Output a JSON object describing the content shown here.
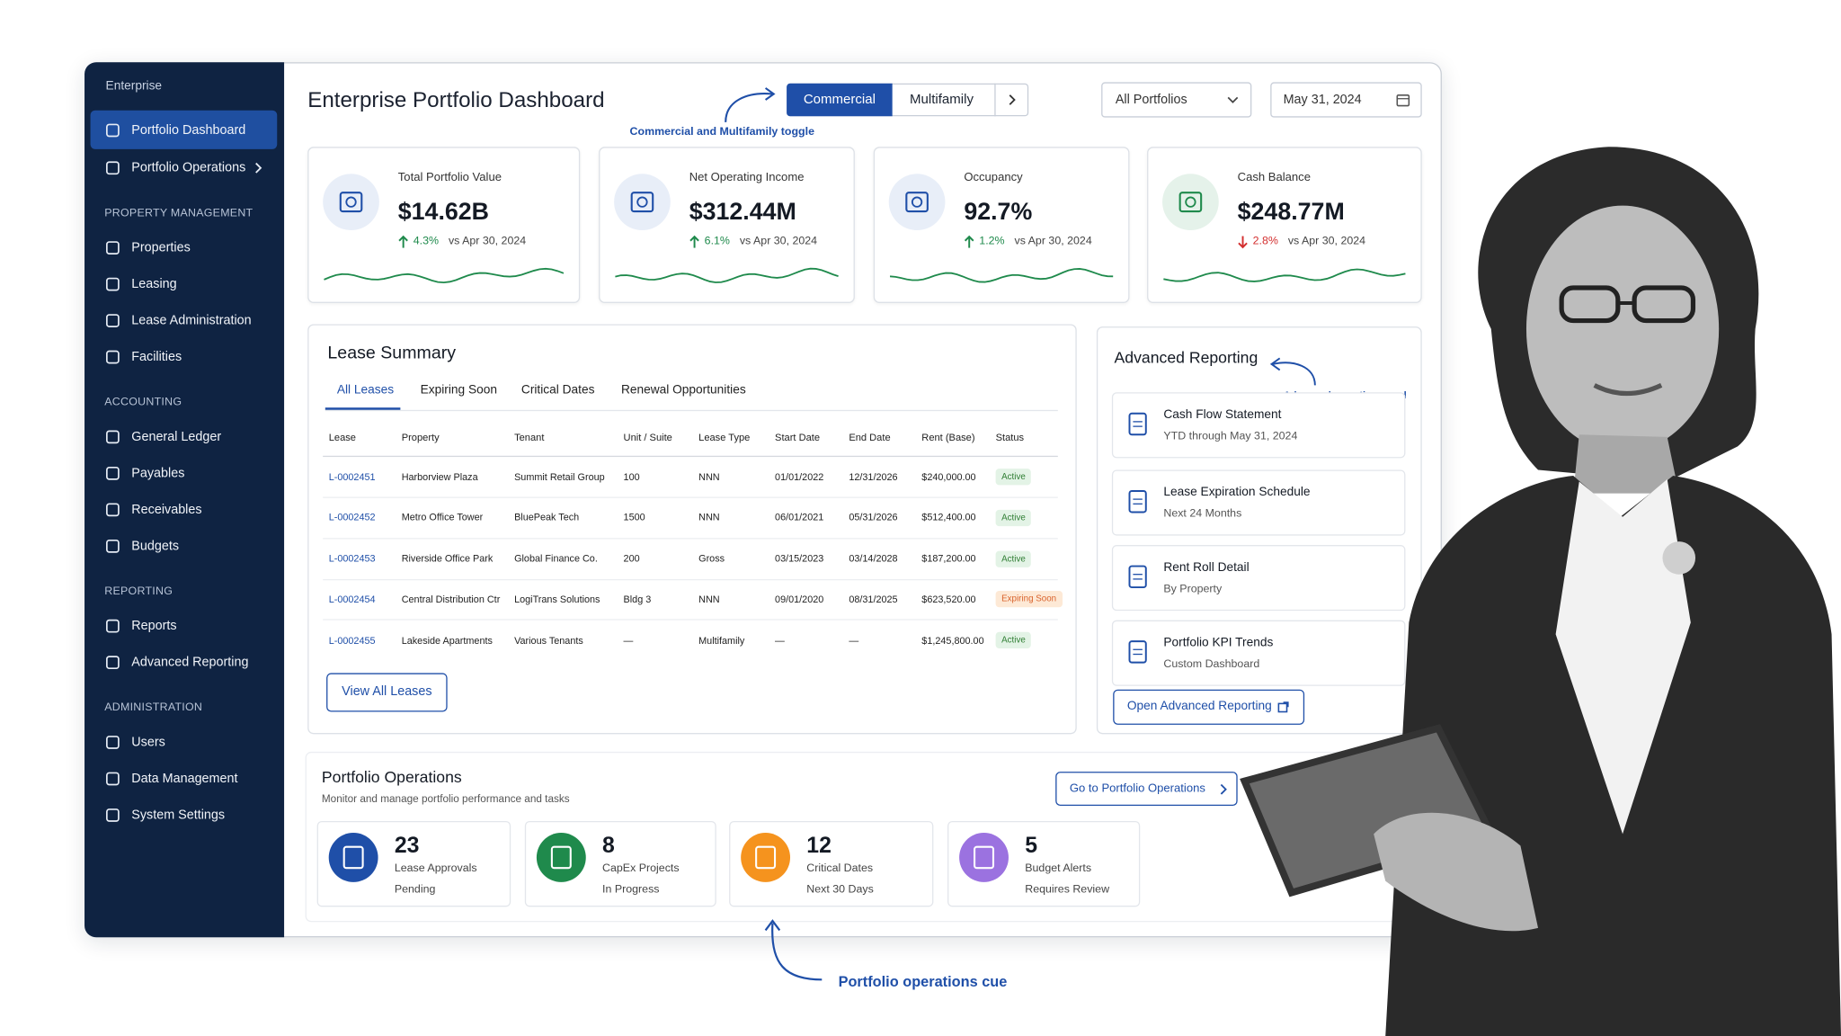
{
  "sidebar": {
    "brand": "Enterprise",
    "main": [
      "Portfolio Dashboard",
      "Portfolio Operations"
    ],
    "sections": [
      {
        "title": "PROPERTY MANAGEMENT",
        "items": [
          "Properties",
          "Leasing",
          "Lease Administration",
          "Facilities"
        ]
      },
      {
        "title": "ACCOUNTING",
        "items": [
          "General Ledger",
          "Payables",
          "Receivables",
          "Budgets"
        ]
      },
      {
        "title": "REPORTING",
        "items": [
          "Reports",
          "Advanced Reporting"
        ]
      },
      {
        "title": "ADMINISTRATION",
        "items": [
          "Users",
          "Data Management",
          "System Settings"
        ]
      }
    ]
  },
  "header": {
    "title": "Enterprise Portfolio Dashboard",
    "segments": [
      "Commercial",
      "Multifamily"
    ],
    "portfolio": "All Portfolios",
    "date": "May 31, 2024"
  },
  "annotations": {
    "toggle": "Commercial and Multifamily toggle",
    "reporting": "Advanced reporting panel",
    "operations": "Portfolio operations cue"
  },
  "kpis": [
    {
      "label": "Total Portfolio Value",
      "value": "$14.62B",
      "change": "4.3%",
      "compare": "vs Apr 30, 2024",
      "trend": "up"
    },
    {
      "label": "Net Operating Income",
      "value": "$312.44M",
      "change": "6.1%",
      "compare": "vs Apr 30, 2024",
      "trend": "up"
    },
    {
      "label": "Occupancy",
      "value": "92.7%",
      "change": "1.2%",
      "compare": "vs Apr 30, 2024",
      "trend": "up"
    },
    {
      "label": "Cash Balance",
      "value": "$248.77M",
      "change": "2.8%",
      "compare": "vs Apr 30, 2024",
      "trend": "down"
    }
  ],
  "lease_summary": {
    "title": "Lease Summary",
    "tabs": [
      "All Leases",
      "Expiring Soon",
      "Critical Dates",
      "Renewal Opportunities"
    ],
    "columns": [
      "Lease",
      "Property",
      "Tenant",
      "Unit / Suite",
      "Lease Type",
      "Start Date",
      "End Date",
      "Rent (Base)",
      "Status"
    ],
    "rows": [
      [
        "L-0002451",
        "Harborview Plaza",
        "Summit Retail Group",
        "100",
        "NNN",
        "01/01/2022",
        "12/31/2026",
        "$240,000.00",
        "Active"
      ],
      [
        "L-0002452",
        "Metro Office Tower",
        "BluePeak Tech",
        "1500",
        "NNN",
        "06/01/2021",
        "05/31/2026",
        "$512,400.00",
        "Active"
      ],
      [
        "L-0002453",
        "Riverside Office Park",
        "Global Finance Co.",
        "200",
        "Gross",
        "03/15/2023",
        "03/14/2028",
        "$187,200.00",
        "Active"
      ],
      [
        "L-0002454",
        "Central Distribution Ctr",
        "LogiTrans Solutions",
        "Bldg 3",
        "NNN",
        "09/01/2020",
        "08/31/2025",
        "$623,520.00",
        "Expiring Soon"
      ],
      [
        "L-0002455",
        "Lakeside Apartments",
        "Various Tenants",
        "—",
        "Multifamily",
        "—",
        "—",
        "$1,245,800.00",
        "Active"
      ]
    ],
    "button": "View All Leases"
  },
  "reporting": {
    "title": "Advanced Reporting",
    "items": [
      {
        "title": "Cash Flow Statement",
        "subtitle": "YTD through May 31, 2024"
      },
      {
        "title": "Lease Expiration Schedule",
        "subtitle": "Next 24 Months"
      },
      {
        "title": "Rent Roll Detail",
        "subtitle": "By Property"
      },
      {
        "title": "Portfolio KPI Trends",
        "subtitle": "Custom Dashboard"
      }
    ],
    "button": "Open Advanced Reporting"
  },
  "operations": {
    "title": "Portfolio Operations",
    "subtitle": "Monitor and manage portfolio performance and tasks",
    "button": "Go to Portfolio Operations",
    "cards": [
      {
        "count": 23,
        "label": "Lease Approvals",
        "detail": "Pending",
        "color": "#1f4fa8"
      },
      {
        "count": 8,
        "label": "CapEx Projects",
        "detail": "In Progress",
        "color": "#1f8a4c"
      },
      {
        "count": 12,
        "label": "Critical Dates",
        "detail": "Next 30 Days",
        "color": "#f5931e"
      },
      {
        "count": 5,
        "label": "Budget Alerts",
        "detail": "Requires Review",
        "color": "#9b72e0"
      }
    ]
  }
}
